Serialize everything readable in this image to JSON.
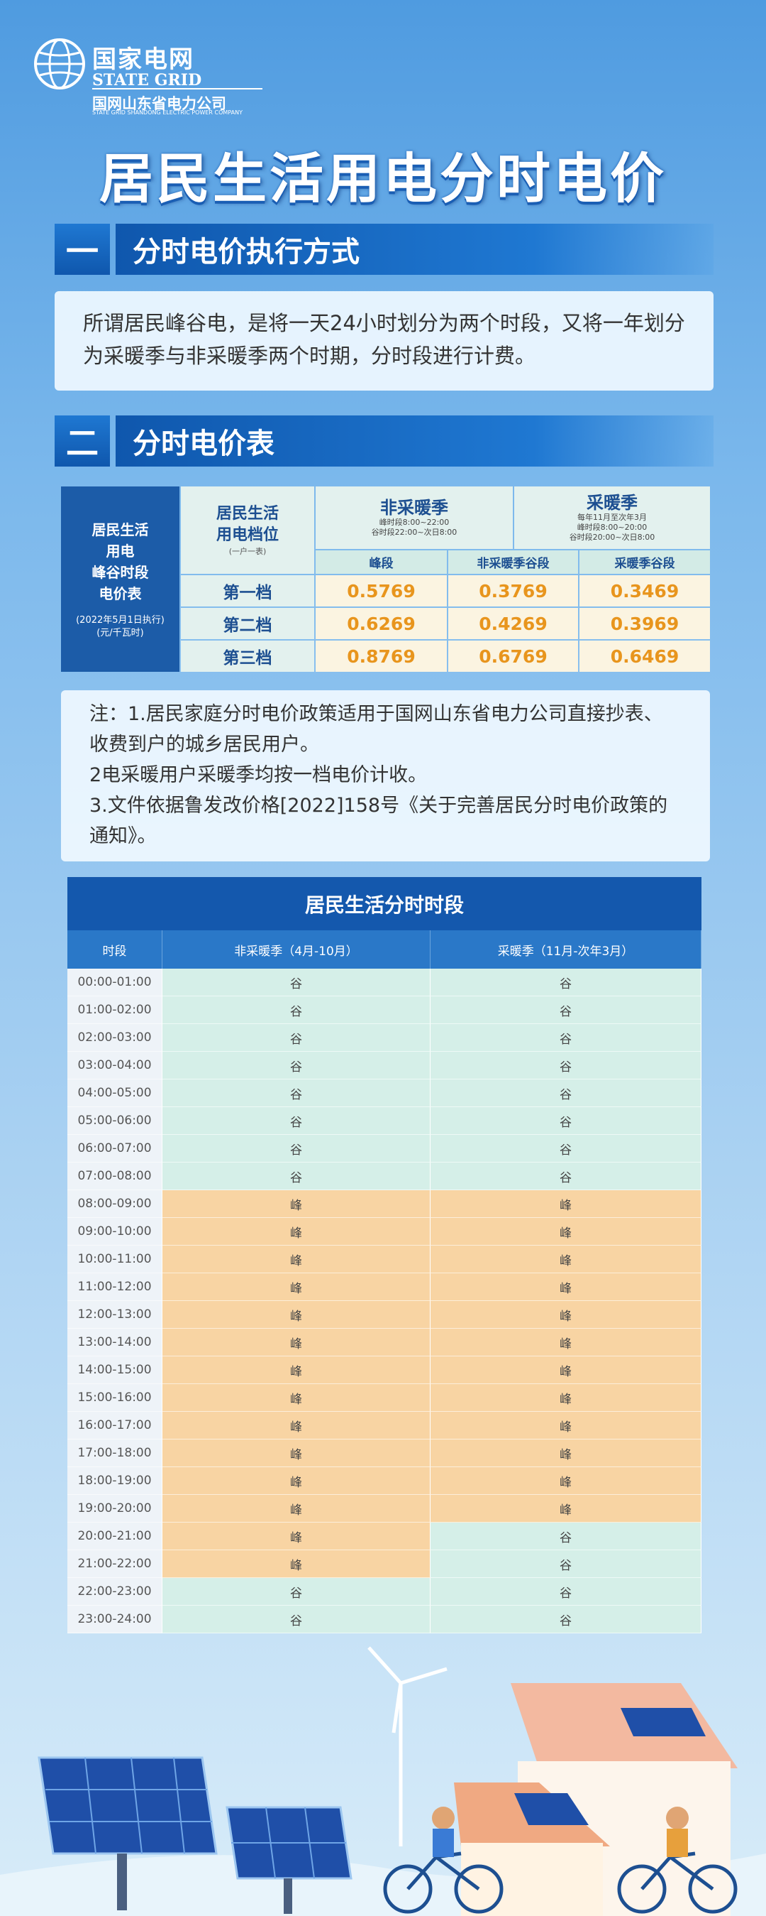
{
  "header": {
    "logo_cn": "国家电网",
    "logo_en": "STATE GRID",
    "company_cn": "国网山东省电力公司",
    "company_en": "STATE GRID SHANDONG ELECTRIC POWER COMPANY"
  },
  "title": "居民生活用电分时电价",
  "sections": [
    {
      "number": "一",
      "title": "分时电价执行方式",
      "body": "所谓居民峰谷电，是将一天24小时划分为两个时段，又将一年划分为采暖季与非采暖季两个时期，分时段进行计费。"
    },
    {
      "number": "二",
      "title": "分时电价表"
    }
  ],
  "price_table": {
    "side_label": [
      "居民生活",
      "用电",
      "峰谷时段",
      "电价表"
    ],
    "side_note": [
      "(2022年5月1日执行)",
      "(元/千瓦时)"
    ],
    "tier_header": [
      "居民生活",
      "用电档位",
      "(一户一表)"
    ],
    "non_heating": {
      "title": "非采暖季",
      "notes": [
        "峰时段8:00~22:00",
        "谷时段22:00~次日8:00"
      ]
    },
    "heating": {
      "title": "采暖季",
      "notes": [
        "每年11月至次年3月",
        "峰时段8:00~20:00",
        "谷时段20:00~次日8:00"
      ]
    },
    "columns": [
      "峰段",
      "非采暖季谷段",
      "采暖季谷段"
    ],
    "rows": [
      {
        "tier": "第一档",
        "prices": [
          0.5769,
          0.3769,
          0.3469
        ]
      },
      {
        "tier": "第二档",
        "prices": [
          0.6269,
          0.4269,
          0.3969
        ]
      },
      {
        "tier": "第三档",
        "prices": [
          0.8769,
          0.6769,
          0.6469
        ]
      }
    ]
  },
  "notes": [
    "注：1.居民家庭分时电价政策适用于国网山东省电力公司直接抄表、收费到户的城乡居民用户。",
    "2电采暖用户采暖季均按一档电价计收。",
    "3.文件依据鲁发改价格[2022]158号《关于完善居民分时电价政策的通知》。"
  ],
  "period_table": {
    "title": "居民生活分时时段",
    "headers": [
      "时段",
      "非采暖季（4月-10月）",
      "采暖季（11月-次年3月）"
    ],
    "rows": [
      [
        "00:00-01:00",
        "谷",
        "谷"
      ],
      [
        "01:00-02:00",
        "谷",
        "谷"
      ],
      [
        "02:00-03:00",
        "谷",
        "谷"
      ],
      [
        "03:00-04:00",
        "谷",
        "谷"
      ],
      [
        "04:00-05:00",
        "谷",
        "谷"
      ],
      [
        "05:00-06:00",
        "谷",
        "谷"
      ],
      [
        "06:00-07:00",
        "谷",
        "谷"
      ],
      [
        "07:00-08:00",
        "谷",
        "谷"
      ],
      [
        "08:00-09:00",
        "峰",
        "峰"
      ],
      [
        "09:00-10:00",
        "峰",
        "峰"
      ],
      [
        "10:00-11:00",
        "峰",
        "峰"
      ],
      [
        "11:00-12:00",
        "峰",
        "峰"
      ],
      [
        "12:00-13:00",
        "峰",
        "峰"
      ],
      [
        "13:00-14:00",
        "峰",
        "峰"
      ],
      [
        "14:00-15:00",
        "峰",
        "峰"
      ],
      [
        "15:00-16:00",
        "峰",
        "峰"
      ],
      [
        "16:00-17:00",
        "峰",
        "峰"
      ],
      [
        "17:00-18:00",
        "峰",
        "峰"
      ],
      [
        "18:00-19:00",
        "峰",
        "峰"
      ],
      [
        "19:00-20:00",
        "峰",
        "峰"
      ],
      [
        "20:00-21:00",
        "峰",
        "谷"
      ],
      [
        "21:00-22:00",
        "峰",
        "谷"
      ],
      [
        "22:00-23:00",
        "谷",
        "谷"
      ],
      [
        "23:00-24:00",
        "谷",
        "谷"
      ]
    ]
  }
}
